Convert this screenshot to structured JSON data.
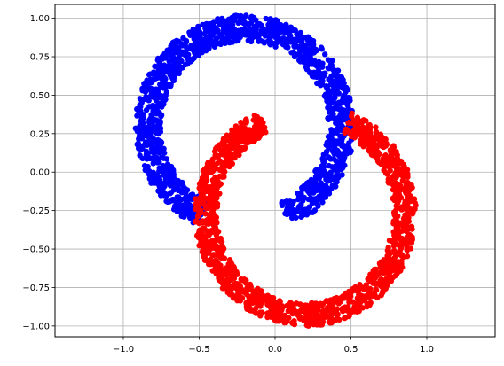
{
  "chart_data": {
    "type": "scatter",
    "title": "",
    "xlabel": "",
    "ylabel": "",
    "xlim": [
      -1.45,
      1.45
    ],
    "ylim": [
      -1.07,
      1.09
    ],
    "grid": true,
    "legend": "none",
    "x_ticks": [
      -1.0,
      -0.5,
      0.0,
      0.5,
      1.0
    ],
    "x_tick_labels": [
      "−1.0",
      "−0.5",
      "0.0",
      "0.5",
      "1.0"
    ],
    "y_ticks": [
      1.0,
      0.75,
      0.5,
      0.25,
      0.0,
      -0.25,
      -0.5,
      -0.75,
      -1.0
    ],
    "y_tick_labels": [
      "1.00",
      "0.75",
      "0.50",
      "0.25",
      "0.00",
      "−0.25",
      "−0.50",
      "−0.75",
      "−1.00"
    ],
    "series": [
      {
        "color": "#0000ff",
        "shape": "upper-left arc",
        "center": [
          -0.2,
          0.3
        ],
        "radius_inner": 0.55,
        "radius_outer": 0.72,
        "angle_deg": [
          -65,
          245
        ],
        "x_range": [
          -1.02,
          0.38
        ],
        "y_range": [
          -0.44,
          1.02
        ]
      },
      {
        "color": "#ff0000",
        "shape": "lower-right arc",
        "center": [
          0.2,
          -0.27
        ],
        "radius_inner": 0.58,
        "radius_outer": 0.73,
        "angle_deg": [
          115,
          425
        ],
        "x_range": [
          -0.38,
          1.0
        ],
        "y_range": [
          -0.99,
          0.47
        ]
      }
    ]
  }
}
